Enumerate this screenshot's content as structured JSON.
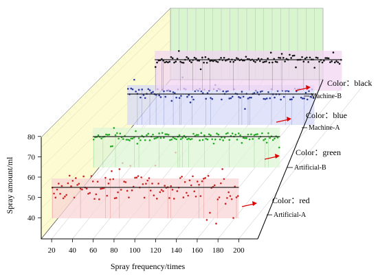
{
  "chart_data": {
    "type": "scatter",
    "variant": "3d-waterfall",
    "xlabel": "Spray frequency/times",
    "ylabel": "Spray amount/ml",
    "xticks": [
      20,
      40,
      60,
      80,
      100,
      120,
      140,
      160,
      180,
      200
    ],
    "yticks": [
      40,
      50,
      60,
      70,
      80
    ],
    "xlim": [
      10,
      205
    ],
    "ylim": [
      35,
      85
    ],
    "grid": true,
    "series": [
      {
        "name": "Artificial-A",
        "annotation": "Color：red",
        "color": "#cc2222",
        "mean": 61.5,
        "spread": 3.2,
        "x_range": [
          1,
          200
        ]
      },
      {
        "name": "Artificial-B",
        "annotation": "Color：green",
        "color": "#22aa22",
        "mean": 62.0,
        "spread": 1.0,
        "x_range": [
          1,
          200
        ]
      },
      {
        "name": "Machine-A",
        "annotation": "Color：blue",
        "color": "#2a3a9a",
        "mean": 61.5,
        "spread": 1.5,
        "x_range": [
          1,
          200
        ]
      },
      {
        "name": "Machine-B",
        "annotation": "Color：black",
        "color": "#111111",
        "mean": 62.0,
        "spread": 0.8,
        "x_range": [
          1,
          200
        ]
      }
    ]
  }
}
